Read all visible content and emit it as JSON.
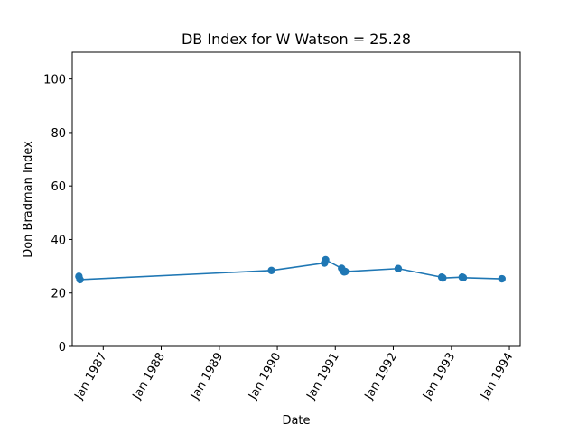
{
  "chart_data": {
    "type": "line",
    "title": "DB Index for W Watson = 25.28",
    "xlabel": "Date",
    "ylabel": "Don Bradman Index",
    "ylim": [
      0,
      110
    ],
    "xlim": [
      "1986-06-20",
      "1994-03-10"
    ],
    "y_ticks": [
      0,
      20,
      40,
      60,
      80,
      100
    ],
    "x_ticks": [
      {
        "date": "1987-01-01",
        "label": "Jan 1987"
      },
      {
        "date": "1988-01-01",
        "label": "Jan 1988"
      },
      {
        "date": "1989-01-01",
        "label": "Jan 1989"
      },
      {
        "date": "1990-01-01",
        "label": "Jan 1990"
      },
      {
        "date": "1991-01-01",
        "label": "Jan 1991"
      },
      {
        "date": "1992-01-01",
        "label": "Jan 1992"
      },
      {
        "date": "1993-01-01",
        "label": "Jan 1993"
      },
      {
        "date": "1994-01-01",
        "label": "Jan 1994"
      }
    ],
    "grid": false,
    "color": "#1f77b4",
    "series": [
      {
        "points": [
          {
            "x": "1986-08-01",
            "y": 26.2
          },
          {
            "x": "1986-08-08",
            "y": 25.0
          },
          {
            "x": "1989-11-25",
            "y": 28.4
          },
          {
            "x": "1990-10-25",
            "y": 31.2
          },
          {
            "x": "1990-11-01",
            "y": 32.4
          },
          {
            "x": "1991-02-10",
            "y": 29.2
          },
          {
            "x": "1991-02-25",
            "y": 27.9
          },
          {
            "x": "1991-03-05",
            "y": 28.0
          },
          {
            "x": "1992-02-01",
            "y": 29.1
          },
          {
            "x": "1992-11-01",
            "y": 25.9
          },
          {
            "x": "1992-11-08",
            "y": 25.6
          },
          {
            "x": "1993-03-10",
            "y": 25.9
          },
          {
            "x": "1993-03-17",
            "y": 25.7
          },
          {
            "x": "1993-11-15",
            "y": 25.3
          }
        ]
      }
    ]
  }
}
